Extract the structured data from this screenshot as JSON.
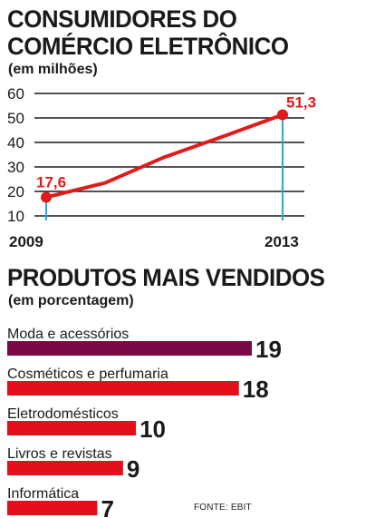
{
  "colors": {
    "line": "#e01b1b",
    "grid": "#1a1a1a",
    "guide": "#2aa7dd",
    "bar_top": "#7a0a45",
    "bar": "#e3101c",
    "text": "#1a1a1a"
  },
  "chart_data": [
    {
      "type": "line",
      "title": "CONSUMIDORES DO COMÉRCIO ELETRÔNICO",
      "subtitle": "(em milhões)",
      "yticks": [
        10,
        20,
        30,
        40,
        50,
        60
      ],
      "ylim": [
        10,
        60
      ],
      "x_labels": [
        "2009",
        "2013"
      ],
      "x": [
        2009,
        2010,
        2011,
        2012,
        2013
      ],
      "values": [
        17.6,
        23.5,
        34.0,
        42.5,
        51.3
      ],
      "point_labels": [
        "17,6",
        "",
        "",
        "",
        "51,3"
      ],
      "grid": true
    },
    {
      "type": "bar",
      "orientation": "horizontal",
      "title": "PRODUTOS MAIS VENDIDOS",
      "subtitle": "(em porcentagem)",
      "categories": [
        "Moda e acessórios",
        "Cosméticos e perfumaria",
        "Eletrodomésticos",
        "Livros e revistas",
        "Informática"
      ],
      "values": [
        19,
        18,
        10,
        9,
        7
      ],
      "value_labels": [
        "19",
        "18",
        "10",
        "9",
        "7"
      ]
    }
  ],
  "source": "FONTE: EBIT"
}
